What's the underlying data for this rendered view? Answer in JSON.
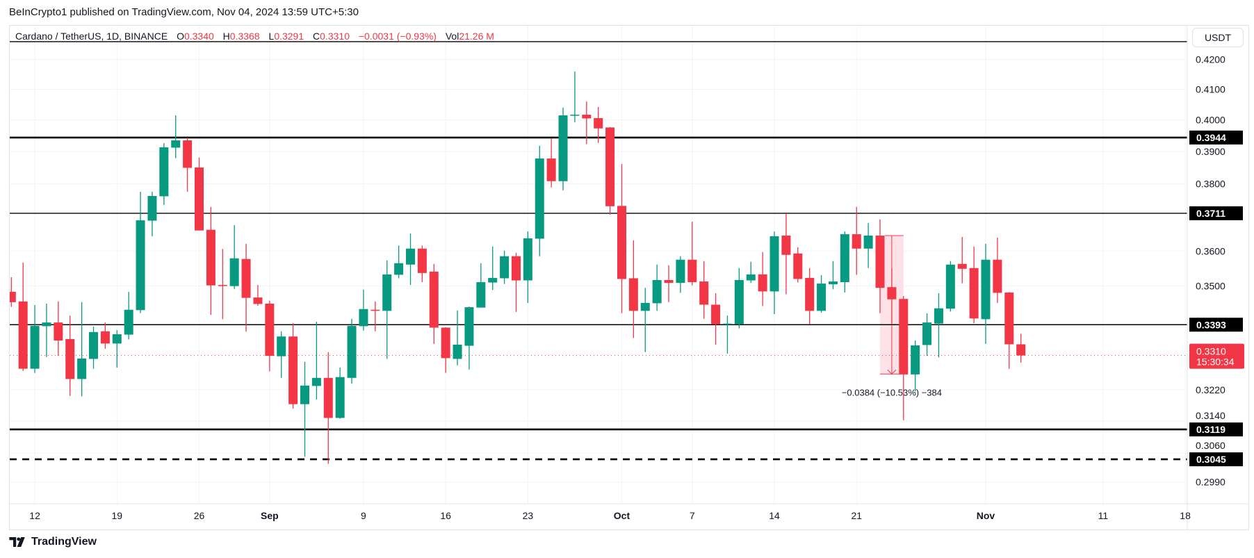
{
  "header": {
    "published": "BeInCrypto1 published on TradingView.com, Nov 04, 2024 13:59 UTC+5:30"
  },
  "legend": {
    "symbol": "Cardano / TetherUS, 1D, BINANCE",
    "o_label": "O",
    "o": "0.3340",
    "h_label": "H",
    "h": "0.3368",
    "l_label": "L",
    "l": "0.3291",
    "c_label": "C",
    "c": "0.3310",
    "change": "−0.0031 (−0.93%)",
    "vol_label": "Vol",
    "vol": "21.26 M"
  },
  "axis": {
    "currency": "USDT"
  },
  "footer": {
    "brand": "TradingView"
  },
  "colors": {
    "up": "#089981",
    "down": "#f23645",
    "level": "#000000",
    "measure_fill": "#fbdde2",
    "grid": "#f0f3fa"
  },
  "chart_data": {
    "type": "candlestick",
    "interval": "1D",
    "y_scale": "log",
    "grid": true,
    "yticks": [
      "0.4200",
      "0.4100",
      "0.4000",
      "0.3900",
      "0.3800",
      "0.3600",
      "0.3500",
      "0.3220",
      "0.3140",
      "0.3060",
      "0.2990"
    ],
    "xticks": [
      {
        "label": "12",
        "date": "2024-08-12"
      },
      {
        "label": "19",
        "date": "2024-08-19"
      },
      {
        "label": "26",
        "date": "2024-08-26"
      },
      {
        "label": "Sep",
        "date": "2024-09-01"
      },
      {
        "label": "9",
        "date": "2024-09-09"
      },
      {
        "label": "16",
        "date": "2024-09-16"
      },
      {
        "label": "23",
        "date": "2024-09-23"
      },
      {
        "label": "Oct",
        "date": "2024-10-01"
      },
      {
        "label": "7",
        "date": "2024-10-07"
      },
      {
        "label": "14",
        "date": "2024-10-14"
      },
      {
        "label": "21",
        "date": "2024-10-21"
      },
      {
        "label": "Nov",
        "date": "2024-11-01"
      },
      {
        "label": "11",
        "date": "2024-11-11"
      },
      {
        "label": "18",
        "date": "2024-11-18"
      }
    ],
    "candle_fields": [
      "date",
      "open",
      "high",
      "low",
      "close"
    ],
    "candles": [
      [
        "2024-08-10",
        0.3484,
        0.3525,
        0.3442,
        0.3455
      ],
      [
        "2024-08-11",
        0.3457,
        0.3567,
        0.3269,
        0.3275
      ],
      [
        "2024-08-12",
        0.3275,
        0.3447,
        0.3264,
        0.339
      ],
      [
        "2024-08-13",
        0.3389,
        0.3451,
        0.3306,
        0.3399
      ],
      [
        "2024-08-14",
        0.3399,
        0.3457,
        0.3309,
        0.335
      ],
      [
        "2024-08-15",
        0.3354,
        0.3418,
        0.3204,
        0.3248
      ],
      [
        "2024-08-16",
        0.3248,
        0.3455,
        0.3203,
        0.3302
      ],
      [
        "2024-08-17",
        0.3301,
        0.3388,
        0.3275,
        0.3373
      ],
      [
        "2024-08-18",
        0.3375,
        0.3399,
        0.3328,
        0.3342
      ],
      [
        "2024-08-19",
        0.3342,
        0.3378,
        0.3278,
        0.3367
      ],
      [
        "2024-08-20",
        0.3366,
        0.3484,
        0.3353,
        0.3434
      ],
      [
        "2024-08-21",
        0.3433,
        0.3776,
        0.3425,
        0.369
      ],
      [
        "2024-08-22",
        0.3689,
        0.3776,
        0.3643,
        0.3763
      ],
      [
        "2024-08-23",
        0.3762,
        0.3926,
        0.3736,
        0.3913
      ],
      [
        "2024-08-24",
        0.3912,
        0.4015,
        0.3879,
        0.3935
      ],
      [
        "2024-08-25",
        0.3935,
        0.3944,
        0.3776,
        0.3849
      ],
      [
        "2024-08-26",
        0.385,
        0.3881,
        0.366,
        0.366
      ],
      [
        "2024-08-27",
        0.3662,
        0.373,
        0.342,
        0.3502
      ],
      [
        "2024-08-28",
        0.3503,
        0.3606,
        0.3408,
        0.3502
      ],
      [
        "2024-08-29",
        0.35,
        0.3676,
        0.3492,
        0.3579
      ],
      [
        "2024-08-30",
        0.3577,
        0.3621,
        0.3374,
        0.3467
      ],
      [
        "2024-08-31",
        0.3468,
        0.3503,
        0.3445,
        0.345
      ],
      [
        "2024-09-01",
        0.3451,
        0.3459,
        0.3268,
        0.3309
      ],
      [
        "2024-09-02",
        0.3308,
        0.3375,
        0.3251,
        0.3361
      ],
      [
        "2024-09-03",
        0.3361,
        0.3397,
        0.3172,
        0.3183
      ],
      [
        "2024-09-04",
        0.3183,
        0.3293,
        0.3051,
        0.3231
      ],
      [
        "2024-09-05",
        0.323,
        0.3401,
        0.3195,
        0.3251
      ],
      [
        "2024-09-06",
        0.3251,
        0.3319,
        0.3034,
        0.3148
      ],
      [
        "2024-09-07",
        0.3148,
        0.3278,
        0.3146,
        0.3253
      ],
      [
        "2024-09-08",
        0.3251,
        0.3409,
        0.3236,
        0.339
      ],
      [
        "2024-09-09",
        0.3389,
        0.349,
        0.3377,
        0.3436
      ],
      [
        "2024-09-10",
        0.3434,
        0.3457,
        0.3375,
        0.3431
      ],
      [
        "2024-09-11",
        0.3431,
        0.3573,
        0.3301,
        0.3533
      ],
      [
        "2024-09-12",
        0.3532,
        0.3616,
        0.3522,
        0.3565
      ],
      [
        "2024-09-13",
        0.3561,
        0.3651,
        0.3503,
        0.3607
      ],
      [
        "2024-09-14",
        0.3607,
        0.3616,
        0.3511,
        0.3537
      ],
      [
        "2024-09-15",
        0.3541,
        0.3563,
        0.3341,
        0.3385
      ],
      [
        "2024-09-16",
        0.3385,
        0.3386,
        0.3264,
        0.3303
      ],
      [
        "2024-09-17",
        0.3301,
        0.3432,
        0.3284,
        0.3339
      ],
      [
        "2024-09-18",
        0.3336,
        0.3443,
        0.3273,
        0.3441
      ],
      [
        "2024-09-19",
        0.344,
        0.3565,
        0.344,
        0.3511
      ],
      [
        "2024-09-20",
        0.351,
        0.3613,
        0.3489,
        0.3523
      ],
      [
        "2024-09-21",
        0.3522,
        0.3601,
        0.3506,
        0.3585
      ],
      [
        "2024-09-22",
        0.3585,
        0.3595,
        0.3428,
        0.3516
      ],
      [
        "2024-09-23",
        0.3516,
        0.3657,
        0.3453,
        0.3637
      ],
      [
        "2024-09-24",
        0.3636,
        0.3918,
        0.3585,
        0.3878
      ],
      [
        "2024-09-25",
        0.3878,
        0.3942,
        0.3789,
        0.3808
      ],
      [
        "2024-09-26",
        0.3808,
        0.404,
        0.378,
        0.4015
      ],
      [
        "2024-09-27",
        0.4016,
        0.4159,
        0.3993,
        0.4017
      ],
      [
        "2024-09-28",
        0.4017,
        0.406,
        0.3923,
        0.4005
      ],
      [
        "2024-09-29",
        0.4006,
        0.4042,
        0.3927,
        0.3973
      ],
      [
        "2024-09-30",
        0.3976,
        0.3977,
        0.3707,
        0.3732
      ],
      [
        "2024-10-01",
        0.3733,
        0.3861,
        0.3425,
        0.352
      ],
      [
        "2024-10-02",
        0.3522,
        0.3631,
        0.3357,
        0.3431
      ],
      [
        "2024-10-03",
        0.3431,
        0.3495,
        0.3319,
        0.3453
      ],
      [
        "2024-10-04",
        0.3452,
        0.3561,
        0.3431,
        0.3517
      ],
      [
        "2024-10-05",
        0.3517,
        0.3559,
        0.3455,
        0.3509
      ],
      [
        "2024-10-06",
        0.3509,
        0.3585,
        0.3481,
        0.3575
      ],
      [
        "2024-10-07",
        0.3575,
        0.3686,
        0.3502,
        0.3511
      ],
      [
        "2024-10-08",
        0.3513,
        0.3571,
        0.3409,
        0.3448
      ],
      [
        "2024-10-09",
        0.3448,
        0.348,
        0.3339,
        0.3394
      ],
      [
        "2024-10-10",
        0.3394,
        0.3418,
        0.3315,
        0.3396
      ],
      [
        "2024-10-11",
        0.3394,
        0.3551,
        0.3383,
        0.3517
      ],
      [
        "2024-10-12",
        0.3516,
        0.3569,
        0.3509,
        0.3533
      ],
      [
        "2024-10-13",
        0.3533,
        0.3597,
        0.3444,
        0.3485
      ],
      [
        "2024-10-14",
        0.3485,
        0.3657,
        0.3422,
        0.3643
      ],
      [
        "2024-10-15",
        0.3645,
        0.3711,
        0.3477,
        0.3589
      ],
      [
        "2024-10-16",
        0.3593,
        0.3611,
        0.351,
        0.352
      ],
      [
        "2024-10-17",
        0.3523,
        0.3551,
        0.3394,
        0.3431
      ],
      [
        "2024-10-18",
        0.3431,
        0.3531,
        0.3426,
        0.3507
      ],
      [
        "2024-10-19",
        0.3505,
        0.3571,
        0.3491,
        0.3513
      ],
      [
        "2024-10-20",
        0.3511,
        0.3657,
        0.3482,
        0.3649
      ],
      [
        "2024-10-21",
        0.3649,
        0.373,
        0.3532,
        0.3607
      ],
      [
        "2024-10-22",
        0.3607,
        0.3682,
        0.3551,
        0.3645
      ],
      [
        "2024-10-23",
        0.3645,
        0.3693,
        0.3425,
        0.3495
      ],
      [
        "2024-10-24",
        0.3497,
        0.3551,
        0.3395,
        0.3463
      ],
      [
        "2024-10-25",
        0.3464,
        0.3472,
        0.3142,
        0.326
      ],
      [
        "2024-10-26",
        0.326,
        0.335,
        0.3216,
        0.3337
      ],
      [
        "2024-10-27",
        0.3338,
        0.3424,
        0.3309,
        0.3399
      ],
      [
        "2024-10-28",
        0.3396,
        0.348,
        0.3305,
        0.3438
      ],
      [
        "2024-10-29",
        0.3437,
        0.3571,
        0.3429,
        0.3561
      ],
      [
        "2024-10-30",
        0.3563,
        0.3641,
        0.3508,
        0.3549
      ],
      [
        "2024-10-31",
        0.3551,
        0.3613,
        0.3397,
        0.341
      ],
      [
        "2024-11-01",
        0.3408,
        0.3621,
        0.3341,
        0.3575
      ],
      [
        "2024-11-02",
        0.3575,
        0.3639,
        0.3453,
        0.3481
      ],
      [
        "2024-11-03",
        0.3482,
        0.3483,
        0.3275,
        0.334
      ],
      [
        "2024-11-04",
        0.334,
        0.3368,
        0.3291,
        0.331
      ]
    ],
    "levels": [
      {
        "price": "0.3944",
        "style": "thick"
      },
      {
        "price": "0.3711",
        "style": "thin"
      },
      {
        "price": "0.3393",
        "style": "thin"
      },
      {
        "price": "0.3119",
        "style": "thick"
      },
      {
        "price": "0.3045",
        "style": "dashed"
      }
    ],
    "unlabeled_level": {
      "price": 0.426
    },
    "current_price": {
      "value": "0.3310",
      "countdown": "15:30:34"
    },
    "measurement": {
      "from_date": "2024-10-23",
      "to_date": "2024-10-25",
      "from_price": 0.3645,
      "to_price": 0.3261,
      "label": "−0.0384 (−10.53%) −384"
    }
  }
}
